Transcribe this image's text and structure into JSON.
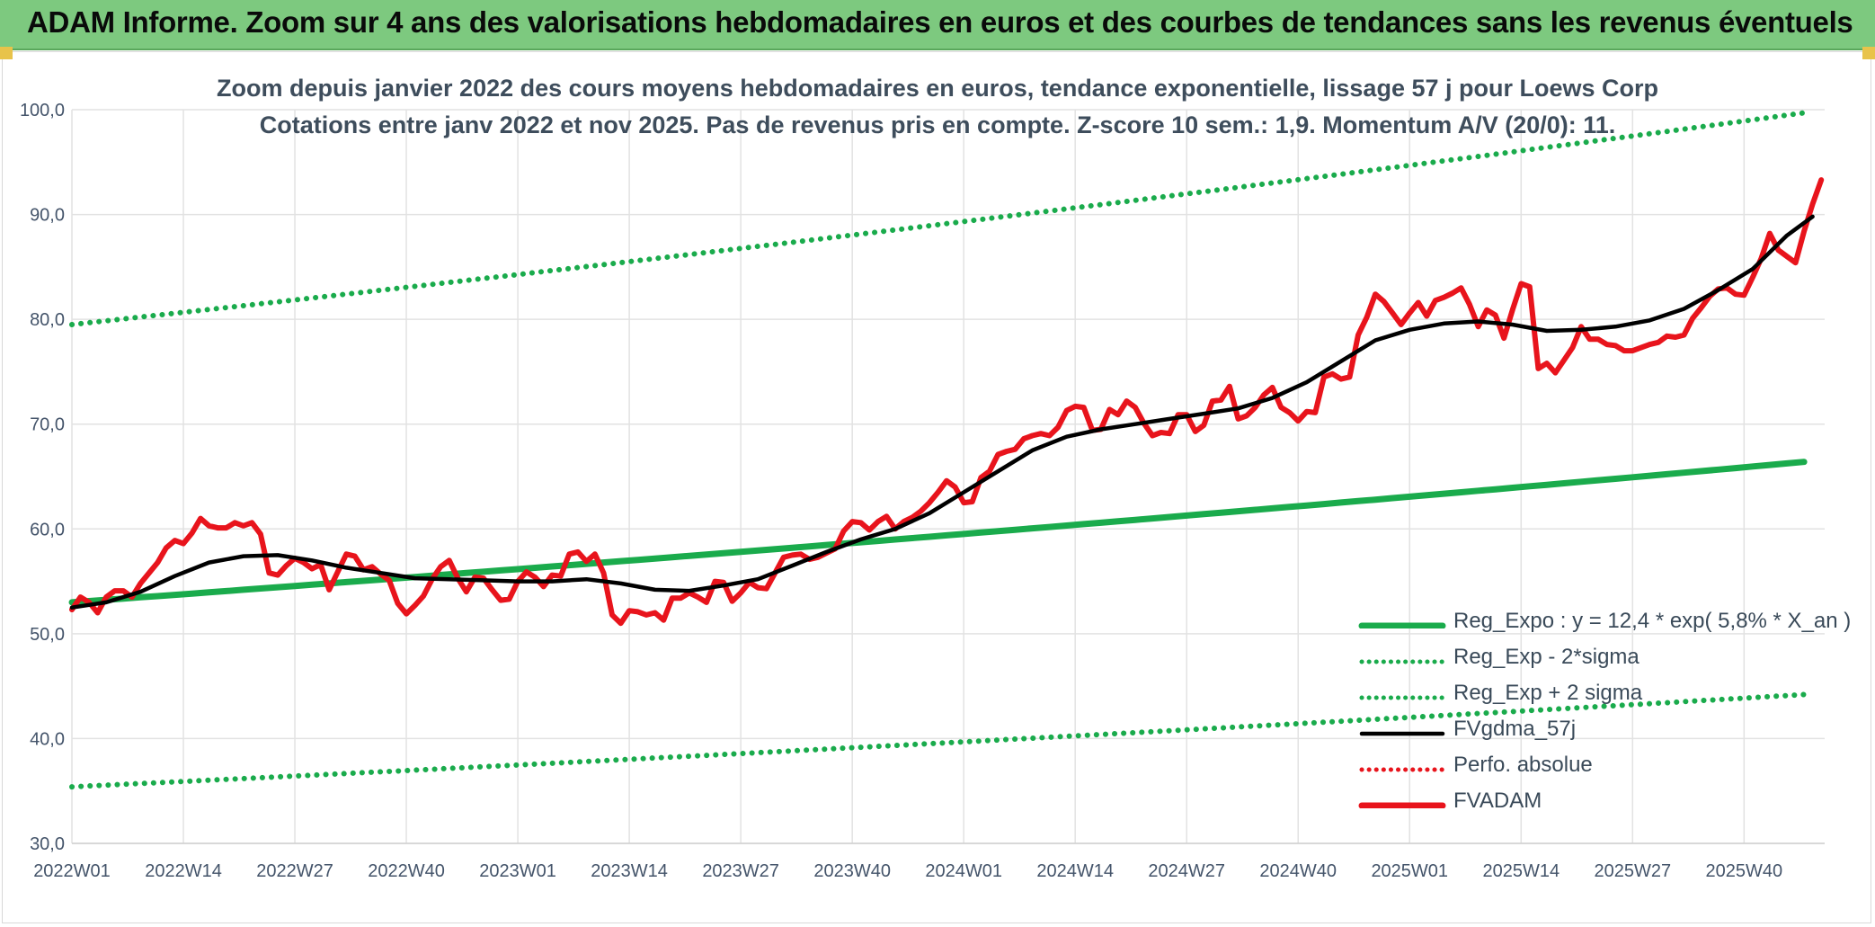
{
  "header": {
    "title": "ADAM Informe. Zoom sur 4 ans des valorisations hebdomadaires en euros et des courbes de tendances sans les revenus éventuels"
  },
  "chart_data": {
    "type": "line",
    "title": "Zoom depuis janvier 2022 des cours moyens hebdomadaires en euros, tendance exponentielle, lissage 57 j pour Loews Corp",
    "subtitle": "Cotations entre janv 2022 et nov 2025. Pas de revenus pris en compte. Z-score 10 sem.: 1,9. Momentum A/V (20/0): 11.",
    "xlabel": "",
    "ylabel": "",
    "ylim": [
      30,
      100
    ],
    "yticks": [
      "30,0",
      "40,0",
      "50,0",
      "60,0",
      "70,0",
      "80,0",
      "90,0",
      "100,0"
    ],
    "ytick_values": [
      30,
      40,
      50,
      60,
      70,
      80,
      90,
      100
    ],
    "x_count": 202,
    "x_tick_labels": [
      "2022W01",
      "2022W14",
      "2022W27",
      "2022W40",
      "2023W01",
      "2023W14",
      "2023W27",
      "2023W40",
      "2024W01",
      "2024W14",
      "2024W27",
      "2024W40",
      "2025W01",
      "2025W14",
      "2025W27",
      "2025W40"
    ],
    "x_tick_positions": [
      0,
      13,
      26,
      39,
      52,
      65,
      78,
      91,
      104,
      117,
      130,
      143,
      156,
      169,
      182,
      195
    ],
    "grid": true,
    "series": [
      {
        "name": "Reg_Expo : y = 12,4 * exp( 5,8% *  X_an )",
        "style": "solid",
        "color": "#1aab4c",
        "start": 53.0,
        "end": 66.4
      },
      {
        "name": "Reg_Exp - 2*sigma",
        "style": "dotted",
        "color": "#1aab4c",
        "start": 35.4,
        "end": 44.2
      },
      {
        "name": "Reg_Exp + 2 sigma",
        "style": "dotted",
        "color": "#1aab4c",
        "start": 79.5,
        "end": 99.7
      },
      {
        "name": "FVgdma_57j",
        "style": "solid",
        "color": "#000000",
        "points": [
          [
            0,
            52.5
          ],
          [
            4,
            53.0
          ],
          [
            8,
            54.0
          ],
          [
            12,
            55.5
          ],
          [
            16,
            56.8
          ],
          [
            20,
            57.4
          ],
          [
            24,
            57.5
          ],
          [
            28,
            57.0
          ],
          [
            32,
            56.3
          ],
          [
            36,
            55.8
          ],
          [
            40,
            55.3
          ],
          [
            44,
            55.2
          ],
          [
            48,
            55.1
          ],
          [
            52,
            55.0
          ],
          [
            56,
            55.0
          ],
          [
            60,
            55.2
          ],
          [
            64,
            54.8
          ],
          [
            68,
            54.2
          ],
          [
            72,
            54.1
          ],
          [
            76,
            54.6
          ],
          [
            80,
            55.2
          ],
          [
            84,
            56.5
          ],
          [
            88,
            57.8
          ],
          [
            92,
            59.0
          ],
          [
            96,
            60.0
          ],
          [
            100,
            61.5
          ],
          [
            104,
            63.5
          ],
          [
            108,
            65.5
          ],
          [
            112,
            67.5
          ],
          [
            116,
            68.8
          ],
          [
            120,
            69.5
          ],
          [
            124,
            70.0
          ],
          [
            128,
            70.5
          ],
          [
            132,
            71.0
          ],
          [
            136,
            71.5
          ],
          [
            140,
            72.5
          ],
          [
            144,
            74.0
          ],
          [
            148,
            76.0
          ],
          [
            152,
            78.0
          ],
          [
            156,
            79.0
          ],
          [
            160,
            79.6
          ],
          [
            164,
            79.8
          ],
          [
            168,
            79.5
          ],
          [
            172,
            78.9
          ],
          [
            176,
            79.0
          ],
          [
            180,
            79.3
          ],
          [
            184,
            79.9
          ],
          [
            188,
            81.0
          ],
          [
            192,
            82.8
          ],
          [
            196,
            84.8
          ],
          [
            200,
            88.0
          ],
          [
            203,
            89.8
          ]
        ]
      },
      {
        "name": "Perfo. absolue",
        "style": "dotted",
        "color": "#e8141c"
      },
      {
        "name": "FVADAM",
        "style": "solid",
        "color": "#e8141c",
        "points": [
          [
            0,
            52.3
          ],
          [
            1,
            53.5
          ],
          [
            2,
            53.0
          ],
          [
            3,
            52.0
          ],
          [
            4,
            53.5
          ],
          [
            5,
            54.1
          ],
          [
            6,
            54.1
          ],
          [
            7,
            53.5
          ],
          [
            8,
            54.8
          ],
          [
            9,
            55.8
          ],
          [
            10,
            56.8
          ],
          [
            11,
            58.2
          ],
          [
            12,
            58.9
          ],
          [
            13,
            58.6
          ],
          [
            14,
            59.6
          ],
          [
            15,
            61.0
          ],
          [
            16,
            60.3
          ],
          [
            17,
            60.1
          ],
          [
            18,
            60.1
          ],
          [
            19,
            60.6
          ],
          [
            20,
            60.3
          ],
          [
            21,
            60.6
          ],
          [
            22,
            59.5
          ],
          [
            23,
            55.8
          ],
          [
            24,
            55.6
          ],
          [
            25,
            56.5
          ],
          [
            26,
            57.2
          ],
          [
            27,
            56.8
          ],
          [
            28,
            56.2
          ],
          [
            29,
            56.6
          ],
          [
            30,
            54.2
          ],
          [
            31,
            55.9
          ],
          [
            32,
            57.6
          ],
          [
            33,
            57.4
          ],
          [
            34,
            56.1
          ],
          [
            35,
            56.4
          ],
          [
            36,
            55.7
          ],
          [
            37,
            55.1
          ],
          [
            38,
            52.9
          ],
          [
            39,
            51.9
          ],
          [
            40,
            52.7
          ],
          [
            41,
            53.6
          ],
          [
            42,
            55.2
          ],
          [
            43,
            56.4
          ],
          [
            44,
            57.0
          ],
          [
            45,
            55.3
          ],
          [
            46,
            54.0
          ],
          [
            47,
            55.4
          ],
          [
            48,
            55.3
          ],
          [
            49,
            54.2
          ],
          [
            50,
            53.2
          ],
          [
            51,
            53.3
          ],
          [
            52,
            55.0
          ],
          [
            53,
            55.9
          ],
          [
            54,
            55.4
          ],
          [
            55,
            54.5
          ],
          [
            56,
            55.6
          ],
          [
            57,
            55.5
          ],
          [
            58,
            57.6
          ],
          [
            59,
            57.8
          ],
          [
            60,
            56.9
          ],
          [
            61,
            57.6
          ],
          [
            62,
            55.8
          ],
          [
            63,
            51.8
          ],
          [
            64,
            51.0
          ],
          [
            65,
            52.2
          ],
          [
            66,
            52.1
          ],
          [
            67,
            51.8
          ],
          [
            68,
            52.0
          ],
          [
            69,
            51.3
          ],
          [
            70,
            53.4
          ],
          [
            71,
            53.4
          ],
          [
            72,
            53.9
          ],
          [
            73,
            53.5
          ],
          [
            74,
            53.0
          ],
          [
            75,
            55.0
          ],
          [
            76,
            54.9
          ],
          [
            77,
            53.1
          ],
          [
            78,
            53.9
          ],
          [
            79,
            54.9
          ],
          [
            80,
            54.4
          ],
          [
            81,
            54.3
          ],
          [
            82,
            55.8
          ],
          [
            83,
            57.3
          ],
          [
            84,
            57.5
          ],
          [
            85,
            57.6
          ],
          [
            86,
            57.1
          ],
          [
            87,
            57.3
          ],
          [
            88,
            57.7
          ],
          [
            89,
            58.1
          ],
          [
            90,
            59.8
          ],
          [
            91,
            60.7
          ],
          [
            92,
            60.6
          ],
          [
            93,
            59.9
          ],
          [
            94,
            60.7
          ],
          [
            95,
            61.2
          ],
          [
            96,
            60.0
          ],
          [
            97,
            60.7
          ],
          [
            98,
            61.1
          ],
          [
            99,
            61.7
          ],
          [
            100,
            62.5
          ],
          [
            101,
            63.5
          ],
          [
            102,
            64.6
          ],
          [
            103,
            64.0
          ],
          [
            104,
            62.5
          ],
          [
            105,
            62.6
          ],
          [
            106,
            64.9
          ],
          [
            107,
            65.5
          ],
          [
            108,
            67.1
          ],
          [
            109,
            67.4
          ],
          [
            110,
            67.6
          ],
          [
            111,
            68.6
          ],
          [
            112,
            68.9
          ],
          [
            113,
            69.1
          ],
          [
            114,
            68.9
          ],
          [
            115,
            69.7
          ],
          [
            116,
            71.3
          ],
          [
            117,
            71.7
          ],
          [
            118,
            71.6
          ],
          [
            119,
            69.4
          ],
          [
            120,
            69.5
          ],
          [
            121,
            71.4
          ],
          [
            122,
            70.9
          ],
          [
            123,
            72.2
          ],
          [
            124,
            71.6
          ],
          [
            125,
            70.1
          ],
          [
            126,
            68.9
          ],
          [
            127,
            69.2
          ],
          [
            128,
            69.1
          ],
          [
            129,
            70.9
          ],
          [
            130,
            70.9
          ],
          [
            131,
            69.3
          ],
          [
            132,
            69.9
          ],
          [
            133,
            72.2
          ],
          [
            134,
            72.3
          ],
          [
            135,
            73.6
          ],
          [
            136,
            70.5
          ],
          [
            137,
            70.8
          ],
          [
            138,
            71.6
          ],
          [
            139,
            72.8
          ],
          [
            140,
            73.5
          ],
          [
            141,
            71.6
          ],
          [
            142,
            71.1
          ],
          [
            143,
            70.3
          ],
          [
            144,
            71.2
          ],
          [
            145,
            71.1
          ],
          [
            146,
            74.5
          ],
          [
            147,
            74.8
          ],
          [
            148,
            74.3
          ],
          [
            149,
            74.5
          ],
          [
            150,
            78.5
          ],
          [
            151,
            80.2
          ],
          [
            152,
            82.4
          ],
          [
            153,
            81.7
          ],
          [
            154,
            80.6
          ],
          [
            155,
            79.5
          ],
          [
            156,
            80.6
          ],
          [
            157,
            81.6
          ],
          [
            158,
            80.3
          ],
          [
            159,
            81.8
          ],
          [
            160,
            82.1
          ],
          [
            161,
            82.5
          ],
          [
            162,
            83.0
          ],
          [
            163,
            81.4
          ],
          [
            164,
            79.3
          ],
          [
            165,
            80.9
          ],
          [
            166,
            80.4
          ],
          [
            167,
            78.2
          ],
          [
            168,
            80.9
          ],
          [
            169,
            83.4
          ],
          [
            170,
            83.1
          ],
          [
            171,
            75.3
          ],
          [
            172,
            75.8
          ],
          [
            173,
            74.9
          ],
          [
            174,
            76.1
          ],
          [
            175,
            77.3
          ],
          [
            176,
            79.3
          ],
          [
            177,
            78.1
          ],
          [
            178,
            78.1
          ],
          [
            179,
            77.6
          ],
          [
            180,
            77.5
          ],
          [
            181,
            77.0
          ],
          [
            182,
            77.0
          ],
          [
            183,
            77.3
          ],
          [
            184,
            77.6
          ],
          [
            185,
            77.8
          ],
          [
            186,
            78.4
          ],
          [
            187,
            78.3
          ],
          [
            188,
            78.5
          ],
          [
            189,
            80.1
          ],
          [
            190,
            81.1
          ],
          [
            191,
            82.2
          ],
          [
            192,
            82.9
          ],
          [
            193,
            83.0
          ],
          [
            194,
            82.4
          ],
          [
            195,
            82.3
          ],
          [
            196,
            84.0
          ],
          [
            197,
            85.8
          ],
          [
            198,
            88.2
          ],
          [
            199,
            86.6
          ],
          [
            200,
            86.0
          ],
          [
            201,
            85.4
          ],
          [
            202,
            88.4
          ],
          [
            203,
            91.0
          ],
          [
            204,
            93.3
          ]
        ]
      }
    ]
  }
}
